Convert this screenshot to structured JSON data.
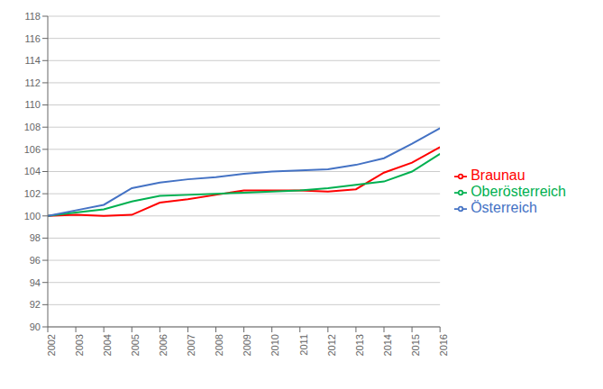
{
  "chart_data": {
    "type": "line",
    "x": [
      2002,
      2003,
      2004,
      2005,
      2006,
      2007,
      2008,
      2009,
      2010,
      2011,
      2012,
      2013,
      2014,
      2015,
      2016
    ],
    "xlim": [
      2002,
      2016
    ],
    "xticks": [
      2002,
      2003,
      2004,
      2005,
      2006,
      2007,
      2008,
      2009,
      2010,
      2011,
      2012,
      2013,
      2014,
      2015,
      2016
    ],
    "ylim": [
      90,
      118
    ],
    "yticks": [
      90,
      92,
      94,
      96,
      98,
      100,
      102,
      104,
      106,
      108,
      110,
      112,
      114,
      116,
      118
    ],
    "grid": true,
    "legend": "right",
    "series": [
      {
        "name": "Braunau",
        "color": "#ff0000",
        "values": [
          100.0,
          100.1,
          100.0,
          100.1,
          101.2,
          101.5,
          101.9,
          102.3,
          102.3,
          102.3,
          102.2,
          102.4,
          103.9,
          104.8,
          106.2
        ]
      },
      {
        "name": "Oberösterreich",
        "color": "#00b050",
        "values": [
          100.0,
          100.3,
          100.6,
          101.3,
          101.8,
          101.9,
          102.0,
          102.1,
          102.2,
          102.3,
          102.5,
          102.8,
          103.1,
          104.0,
          105.6
        ]
      },
      {
        "name": "Österreich",
        "color": "#4472c4",
        "values": [
          100.0,
          100.5,
          101.0,
          102.5,
          103.0,
          103.3,
          103.5,
          103.8,
          104.0,
          104.1,
          104.2,
          104.6,
          105.2,
          106.5,
          107.9
        ]
      }
    ]
  }
}
